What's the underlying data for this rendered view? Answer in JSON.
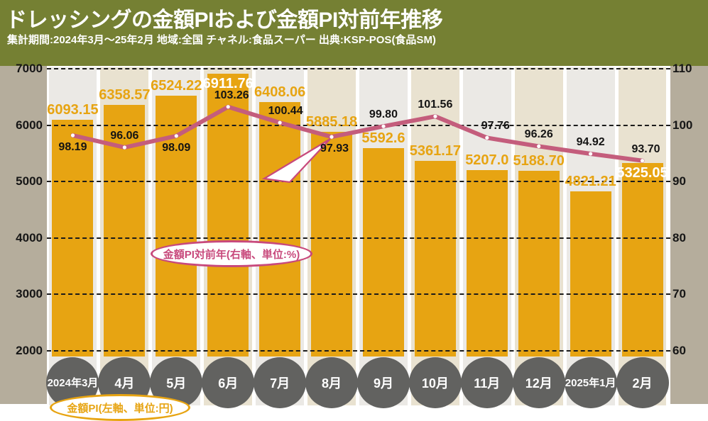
{
  "header": {
    "title": "ドレッシングの金額PIおよび金額PI対前年推移",
    "subtitle": "集計期間:2024年3月〜25年2月 地域:全国 チャネル:食品スーパー 出典:KSP-POS(食品SM)"
  },
  "chart_data": {
    "type": "bar",
    "combo": "bar+line",
    "categories": [
      [
        "2024年",
        "3月"
      ],
      [
        "4月"
      ],
      [
        "5月"
      ],
      [
        "6月"
      ],
      [
        "7月"
      ],
      [
        "8月"
      ],
      [
        "9月"
      ],
      [
        "10月"
      ],
      [
        "11月"
      ],
      [
        "12月"
      ],
      [
        "2025年",
        "1月"
      ],
      [
        "2月"
      ]
    ],
    "series": [
      {
        "name": "金額PI",
        "type": "bar",
        "axis": "left",
        "unit": "円",
        "values": [
          6093.15,
          6358.57,
          6524.22,
          6911.76,
          6408.06,
          5885.18,
          5592.6,
          5361.17,
          5207.0,
          5188.7,
          4821.21,
          5325.05
        ],
        "labels": [
          "6093.15",
          "6358.57",
          "6524.22",
          "6911.76",
          "6408.06",
          "5885.18",
          "5592.6",
          "5361.17",
          "5207.0",
          "5188.70",
          "4821.21",
          "5325.05"
        ]
      },
      {
        "name": "金額PI対前年",
        "type": "line",
        "axis": "right",
        "unit": "%",
        "values": [
          98.19,
          96.06,
          98.09,
          103.26,
          100.44,
          97.93,
          99.8,
          101.56,
          97.76,
          96.26,
          94.92,
          93.7
        ],
        "labels": [
          "98.19",
          "96.06",
          "98.09",
          "103.26",
          "100.44",
          "97.93",
          "99.80",
          "101.56",
          "97.76",
          "96.26",
          "94.92",
          "93.70"
        ]
      }
    ],
    "left_axis": {
      "min": 2000,
      "max": 7000,
      "ticks": [
        7000,
        6000,
        5000,
        4000,
        3000,
        2000
      ],
      "unit": "円",
      "grid": "dashed"
    },
    "right_axis": {
      "min": 60,
      "max": 110,
      "ticks": [
        110,
        100,
        90,
        80,
        70,
        60
      ],
      "unit": "%"
    },
    "annotations": [
      {
        "id": "line-callout",
        "text": "金額PI対前年(右軸、単位:%)"
      },
      {
        "id": "bar-callout",
        "text": "金額PI(左軸、単位:円)"
      }
    ],
    "colors": {
      "header_bg": "#758033",
      "margin": "#b5ad9c",
      "column_a": "#ebe9e5",
      "column_b": "#e9e2d0",
      "bar": "#e7a412",
      "line": "#c45d7c",
      "callout_pink": "#c8497c",
      "month_circle": "#626260",
      "grid": "#1b1b1b"
    }
  }
}
